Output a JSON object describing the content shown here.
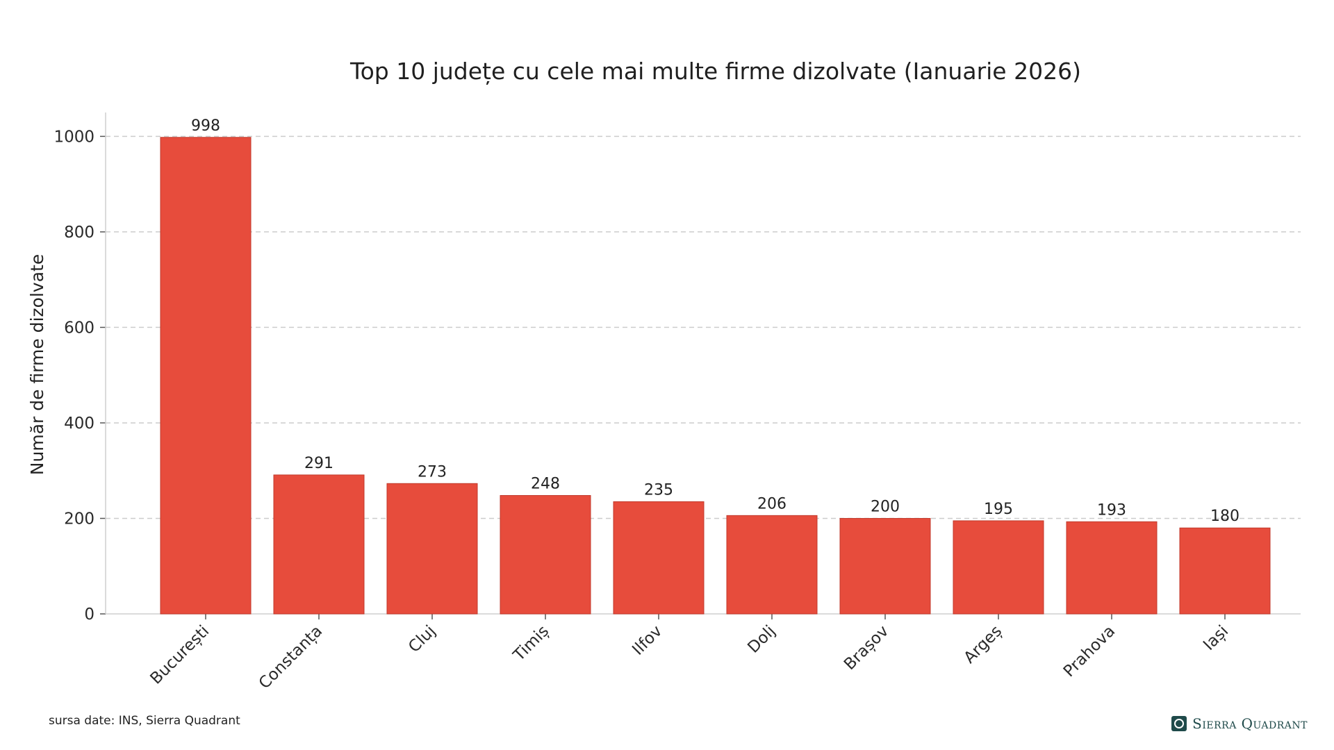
{
  "chart_data": {
    "type": "bar",
    "title": "Top 10 județe cu cele mai multe firme dizolvate (Ianuarie 2026)",
    "xlabel": "",
    "ylabel": "Număr de firme dizolvate",
    "categories": [
      "București",
      "Constanța",
      "Cluj",
      "Timiș",
      "Ilfov",
      "Dolj",
      "Brașov",
      "Argeș",
      "Prahova",
      "Iași"
    ],
    "values": [
      998,
      291,
      273,
      248,
      235,
      206,
      200,
      195,
      193,
      180
    ],
    "ylim": [
      0,
      1050
    ],
    "yticks": [
      0,
      200,
      400,
      600,
      800,
      1000
    ],
    "grid": "horizontal dashed",
    "bar_color": "#e74c3c",
    "bar_edge_color": "#c0392b",
    "grid_color": "#cccccc"
  },
  "footer": {
    "source": "sursa date: INS, Sierra Quadrant",
    "brand": "Sierra Quadrant"
  }
}
